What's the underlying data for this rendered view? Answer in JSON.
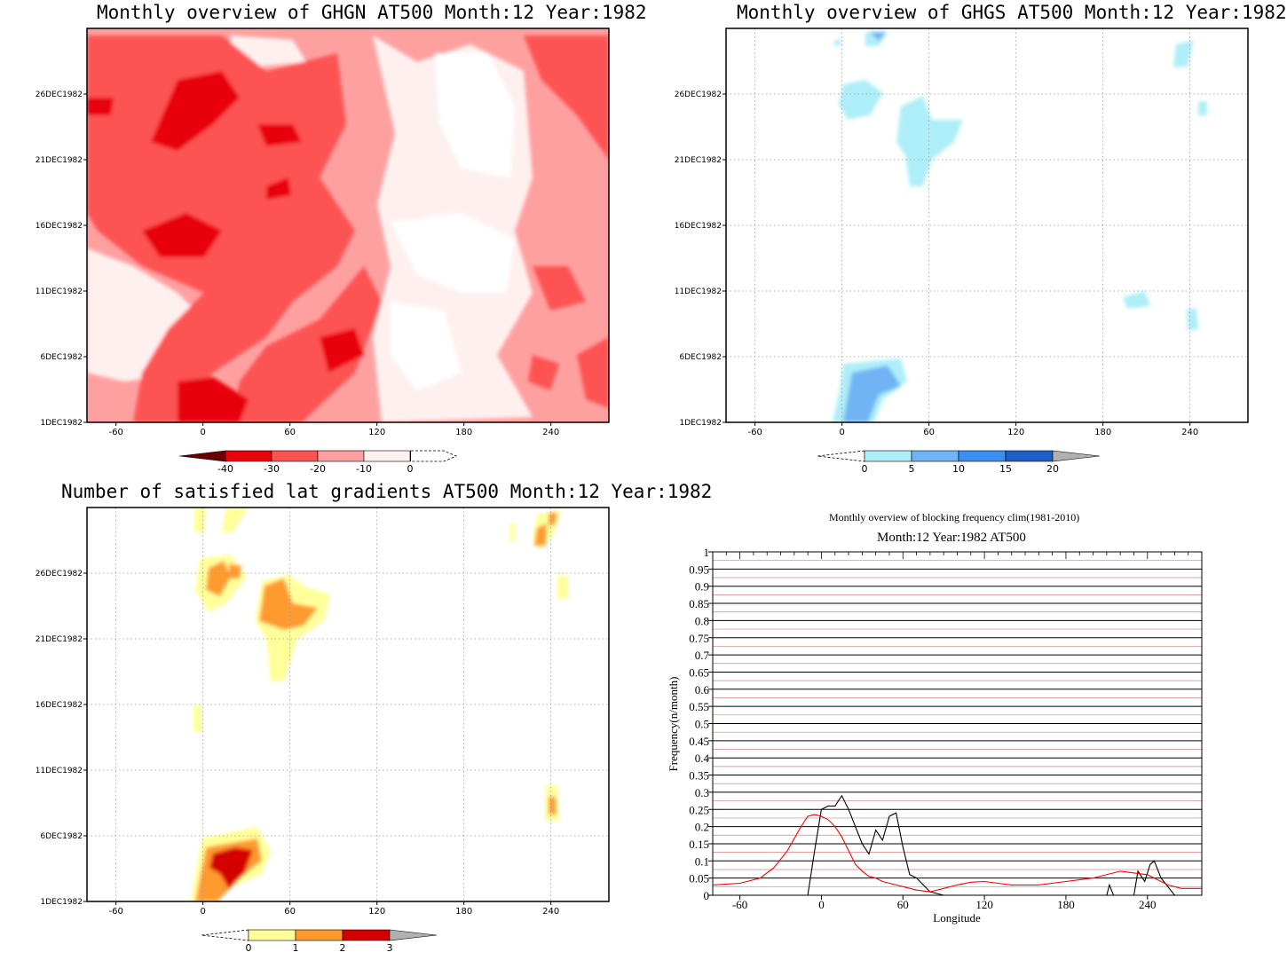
{
  "chart_data": [
    {
      "type": "heatmap",
      "title": "Monthly overview of GHGN AT500 Month:12 Year:1982",
      "x_ticks": [
        "-60",
        "0",
        "60",
        "120",
        "180",
        "240"
      ],
      "y_ticks": [
        "1DEC1982",
        "6DEC1982",
        "11DEC1982",
        "16DEC1982",
        "21DEC1982",
        "26DEC1982"
      ],
      "colorbar": {
        "labels": [
          "-40",
          "-30",
          "-20",
          "-10",
          "0"
        ],
        "colors": [
          "#6b0000",
          "#e8000b",
          "#fd5252",
          "#ffa0a0",
          "#fff0f0"
        ]
      },
      "grid": false
    },
    {
      "type": "heatmap",
      "title": "Monthly overview of GHGS AT500 Month:12 Year:1982",
      "x_ticks": [
        "-60",
        "0",
        "60",
        "120",
        "180",
        "240"
      ],
      "y_ticks": [
        "1DEC1982",
        "6DEC1982",
        "11DEC1982",
        "16DEC1982",
        "21DEC1982",
        "26DEC1982"
      ],
      "colorbar": {
        "labels": [
          "0",
          "5",
          "10",
          "15",
          "20"
        ],
        "colors": [
          "#aeeef8",
          "#6fb4f4",
          "#3a8ff0",
          "#1e60c8",
          "#b0b0b0"
        ]
      },
      "grid": true
    },
    {
      "type": "heatmap",
      "title": "Number of satisfied lat gradients AT500 Month:12 Year:1982",
      "x_ticks": [
        "-60",
        "0",
        "60",
        "120",
        "180",
        "240"
      ],
      "y_ticks": [
        "1DEC1982",
        "6DEC1982",
        "11DEC1982",
        "16DEC1982",
        "21DEC1982",
        "26DEC1982"
      ],
      "colorbar": {
        "labels": [
          "0",
          "1",
          "2",
          "3"
        ],
        "colors": [
          "#ffff99",
          "#ff9a2e",
          "#d40000",
          "#b0b0b0"
        ]
      },
      "grid": true
    },
    {
      "type": "line",
      "title": "Monthly overview of blocking frequency clim(1981-2010)",
      "subtitle": "Month:12 Year:1982  AT500",
      "xlabel": "Longitude",
      "ylabel": "Frequency(n/month)",
      "xlim": [
        -80,
        280
      ],
      "ylim": [
        0,
        1
      ],
      "x_ticks": [
        "-60",
        "0",
        "60",
        "120",
        "180",
        "240"
      ],
      "y_ticks": [
        "0",
        "0.05",
        "0.1",
        "0.15",
        "0.2",
        "0.25",
        "0.3",
        "0.35",
        "0.4",
        "0.45",
        "0.5",
        "0.55",
        "0.6",
        "0.65",
        "0.7",
        "0.75",
        "0.8",
        "0.85",
        "0.9",
        "0.95",
        "1"
      ],
      "series": [
        {
          "color": "#000000",
          "x": [
            -80,
            -20,
            -10,
            -5,
            0,
            5,
            10,
            15,
            20,
            25,
            30,
            35,
            40,
            45,
            50,
            55,
            60,
            65,
            70,
            80,
            90,
            100,
            110,
            120,
            140,
            160,
            180,
            195,
            200,
            205,
            210,
            212,
            215,
            218,
            220,
            225,
            230,
            233,
            238,
            242,
            245,
            250,
            260,
            280
          ],
          "y": [
            0,
            0,
            0,
            0.13,
            0.25,
            0.26,
            0.26,
            0.29,
            0.25,
            0.2,
            0.15,
            0.12,
            0.19,
            0.16,
            0.23,
            0.24,
            0.14,
            0.06,
            0.05,
            0.01,
            0,
            0,
            0,
            0,
            0,
            0,
            0,
            0,
            0,
            0,
            0,
            0.03,
            0,
            0,
            0,
            0,
            0,
            0.07,
            0.04,
            0.09,
            0.1,
            0.05,
            0,
            0
          ]
        },
        {
          "color": "#ff0000",
          "x": [
            -80,
            -60,
            -45,
            -35,
            -25,
            -15,
            -10,
            -5,
            0,
            5,
            10,
            15,
            20,
            25,
            30,
            35,
            40,
            45,
            50,
            55,
            60,
            70,
            80,
            90,
            100,
            110,
            120,
            130,
            140,
            160,
            180,
            200,
            220,
            240,
            255,
            265,
            280
          ],
          "y": [
            0.03,
            0.035,
            0.05,
            0.08,
            0.13,
            0.2,
            0.23,
            0.235,
            0.23,
            0.22,
            0.2,
            0.17,
            0.13,
            0.09,
            0.07,
            0.055,
            0.05,
            0.04,
            0.035,
            0.03,
            0.025,
            0.015,
            0.01,
            0.02,
            0.03,
            0.038,
            0.04,
            0.035,
            0.03,
            0.03,
            0.04,
            0.05,
            0.07,
            0.06,
            0.03,
            0.02,
            0.02
          ]
        }
      ]
    }
  ]
}
